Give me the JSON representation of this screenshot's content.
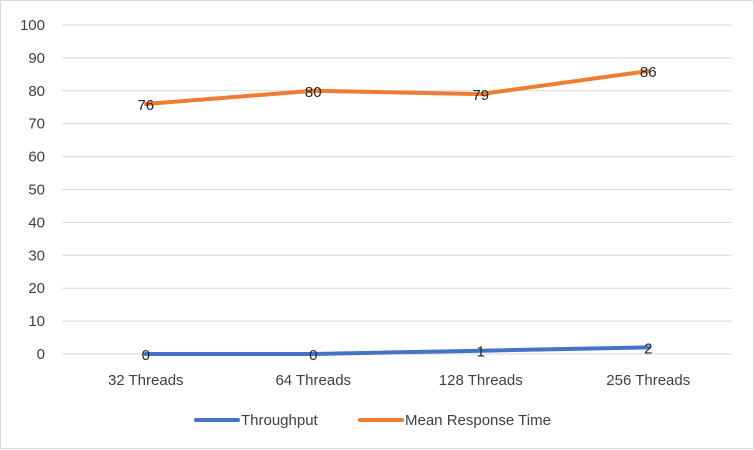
{
  "chart_data": {
    "type": "line",
    "title": "",
    "xlabel": "",
    "ylabel": "",
    "categories": [
      "32 Threads",
      "64 Threads",
      "128 Threads",
      "256 Threads"
    ],
    "ylim": [
      0,
      100
    ],
    "yticks": [
      0,
      10,
      20,
      30,
      40,
      50,
      60,
      70,
      80,
      90,
      100
    ],
    "grid": true,
    "legend": "bottom",
    "series": [
      {
        "name": "Throughput",
        "color": "#4472C4",
        "values": [
          0,
          0,
          1,
          2
        ],
        "labels": [
          "0",
          "0",
          "1",
          "2"
        ]
      },
      {
        "name": "Mean Response Time",
        "color": "#ED7D31",
        "values": [
          76,
          80,
          79,
          86
        ],
        "labels": [
          "76",
          "80",
          "79",
          "86"
        ]
      }
    ]
  }
}
